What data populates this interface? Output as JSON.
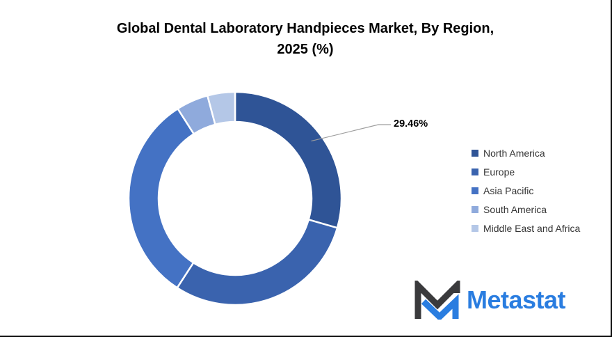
{
  "title": {
    "line1": "Global Dental Laboratory Handpieces Market, By Region,",
    "line2": "2025 (%)"
  },
  "chart_data": {
    "type": "pie",
    "subtype": "donut",
    "title": "Global Dental Laboratory Handpieces Market, By Region, 2025 (%)",
    "categories": [
      "North America",
      "Europe",
      "Asia Pacific",
      "South America",
      "Middle East and Africa"
    ],
    "values": [
      29.46,
      29.7,
      31.78,
      4.88,
      4.18
    ],
    "values_note": "Only North America (29.46%) is labeled on the chart; other values estimated from arc angles",
    "colors": [
      "#2F5496",
      "#3A63AE",
      "#4472C4",
      "#8FAADC",
      "#B4C7E7"
    ],
    "unit": "%",
    "start_angle_deg": 0,
    "direction": "clockwise",
    "legend_position": "right",
    "data_label": {
      "text": "29.46%",
      "category": "North America"
    }
  },
  "callout": {
    "text": "29.46%"
  },
  "leader_line_color": "#9e9e9e",
  "logo": {
    "text": "Metastat",
    "accent_color": "#2A7DE0",
    "dark_color": "#3A3A3C"
  }
}
